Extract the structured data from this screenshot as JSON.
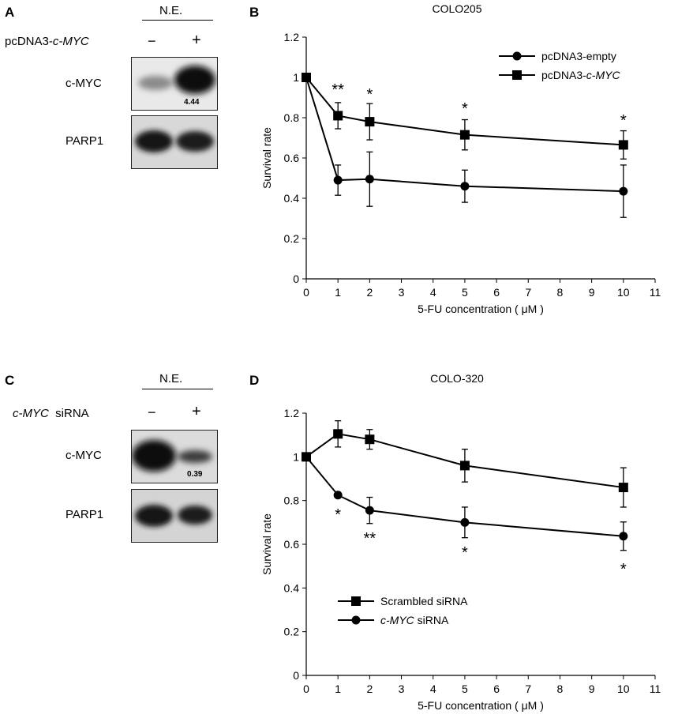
{
  "panels": {
    "A": {
      "letter": "A",
      "ne": "N.E.",
      "treatment_label_pre": "pcDNA3-",
      "treatment_label_gene": "c-MYC",
      "minus": "−",
      "plus": "+",
      "row1": "c-MYC",
      "row2": "PARP1",
      "quant": "4.44"
    },
    "B": {
      "letter": "B"
    },
    "C": {
      "letter": "C",
      "ne": "N.E.",
      "treatment_label_gene": "c-MYC",
      "treatment_label_post": "siRNA",
      "minus": "−",
      "plus": "+",
      "row1": "c-MYC",
      "row2": "PARP1",
      "quant": "0.39"
    },
    "D": {
      "letter": "D"
    }
  },
  "chart_data": [
    {
      "type": "line",
      "title": "COLO205",
      "xlabel": "5-FU concentration ( μM )",
      "ylabel": "Survival rate",
      "xlim": [
        0,
        11
      ],
      "ylim": [
        0,
        1.2
      ],
      "x_ticks": [
        "0",
        "1",
        "2",
        "3",
        "4",
        "5",
        "6",
        "7",
        "8",
        "9",
        "10",
        "11"
      ],
      "y_ticks": [
        "0",
        "0.2",
        "0.4",
        "0.6",
        "0.8",
        "1",
        "1.2"
      ],
      "legend_position": "top-right",
      "x": [
        0,
        1,
        2,
        5,
        10
      ],
      "series": [
        {
          "name": "pcDNA3-empty",
          "marker": "circle",
          "values": [
            1.0,
            0.49,
            0.495,
            0.46,
            0.435
          ],
          "errors": [
            0,
            0.075,
            0.135,
            0.08,
            0.13
          ]
        },
        {
          "name": "pcDNA3-c-MYC",
          "marker": "square",
          "values": [
            1.0,
            0.81,
            0.78,
            0.715,
            0.665
          ],
          "errors": [
            0,
            0.065,
            0.09,
            0.075,
            0.07
          ]
        }
      ],
      "significance": [
        {
          "x": 1,
          "label": "**"
        },
        {
          "x": 2,
          "label": "*"
        },
        {
          "x": 5,
          "label": "*"
        },
        {
          "x": 10,
          "label": "*"
        }
      ]
    },
    {
      "type": "line",
      "title": "COLO-320",
      "xlabel": "5-FU concentration ( μM )",
      "ylabel": "Survival rate",
      "xlim": [
        0,
        11
      ],
      "ylim": [
        0,
        1.2
      ],
      "x_ticks": [
        "0",
        "1",
        "2",
        "3",
        "4",
        "5",
        "6",
        "7",
        "8",
        "9",
        "10",
        "11"
      ],
      "y_ticks": [
        "0",
        "0.2",
        "0.4",
        "0.6",
        "0.8",
        "1",
        "1.2"
      ],
      "legend_position": "bottom-left",
      "x": [
        0,
        1,
        2,
        5,
        10
      ],
      "series": [
        {
          "name": "Scrambled siRNA",
          "marker": "square",
          "values": [
            1.0,
            1.105,
            1.08,
            0.96,
            0.86
          ],
          "errors": [
            0,
            0.06,
            0.045,
            0.075,
            0.09
          ]
        },
        {
          "name": "c-MYC siRNA",
          "marker": "circle",
          "values": [
            1.0,
            0.825,
            0.755,
            0.7,
            0.637
          ],
          "errors": [
            0,
            0,
            0.06,
            0.07,
            0.065
          ]
        }
      ],
      "significance": [
        {
          "x": 1,
          "label": "*"
        },
        {
          "x": 2,
          "label": "**"
        },
        {
          "x": 5,
          "label": "*"
        },
        {
          "x": 10,
          "label": "*"
        }
      ]
    }
  ]
}
